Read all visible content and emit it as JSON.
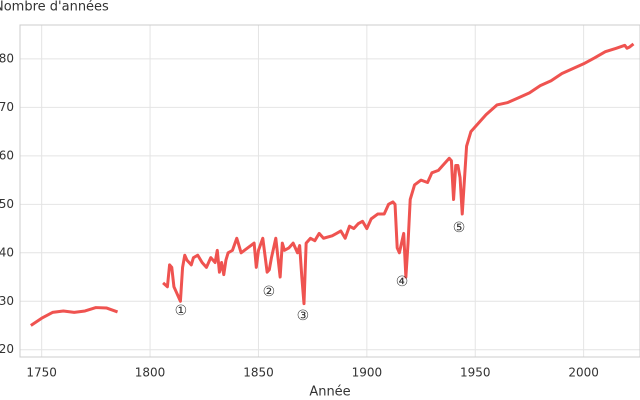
{
  "chart_data": {
    "type": "line",
    "y_label": "Nombre d'années",
    "x_label": "Année",
    "x": [
      1745,
      1750,
      1755,
      1760,
      1765,
      1770,
      1775,
      1780,
      1785,
      1795,
      1806,
      1808,
      1809,
      1810,
      1811,
      1812,
      1813,
      1814,
      1815,
      1816,
      1817,
      1818,
      1819,
      1820,
      1822,
      1824,
      1826,
      1828,
      1830,
      1831,
      1832,
      1833,
      1834,
      1835,
      1836,
      1838,
      1840,
      1842,
      1845,
      1848,
      1849,
      1850,
      1852,
      1854,
      1855,
      1856,
      1858,
      1860,
      1861,
      1862,
      1864,
      1866,
      1868,
      1869,
      1870,
      1871,
      1872,
      1874,
      1876,
      1878,
      1880,
      1884,
      1886,
      1888,
      1890,
      1892,
      1894,
      1896,
      1898,
      1900,
      1902,
      1905,
      1908,
      1910,
      1912,
      1913,
      1914,
      1915,
      1916,
      1917,
      1918,
      1919,
      1920,
      1922,
      1925,
      1928,
      1930,
      1933,
      1935,
      1938,
      1939,
      1940,
      1941,
      1942,
      1943,
      1944,
      1945,
      1946,
      1948,
      1950,
      1955,
      1960,
      1965,
      1970,
      1975,
      1980,
      1985,
      1990,
      1995,
      2000,
      2005,
      2010,
      2015,
      2019,
      2020,
      2021,
      2023
    ],
    "series": [
      {
        "color": "#ef5350",
        "values": [
          25,
          26.5,
          27.7,
          28,
          27.7,
          28,
          28.7,
          28.6,
          27.8,
          null,
          33.8,
          33,
          37.5,
          37,
          33,
          32,
          31,
          30,
          37,
          39.5,
          38.5,
          38,
          37.5,
          39,
          39.5,
          38,
          37,
          39,
          38,
          40.5,
          36,
          38,
          35.5,
          38.5,
          40,
          40.5,
          43,
          40,
          41,
          42,
          37,
          40.5,
          43,
          36,
          36.5,
          39,
          43,
          35,
          42,
          40.5,
          41,
          42,
          40,
          41.5,
          35,
          29.5,
          42,
          43,
          42.5,
          44,
          43,
          43.5,
          44,
          44.5,
          43,
          45.5,
          45,
          46,
          46.5,
          45,
          47,
          48,
          48,
          50,
          50.5,
          50,
          41,
          40,
          42,
          44,
          35,
          42,
          51,
          54,
          55,
          54.5,
          56.5,
          57,
          58,
          59.5,
          59,
          51,
          58,
          58,
          55.5,
          48,
          55,
          62,
          65,
          66,
          68.5,
          70.5,
          71,
          72,
          73,
          74.5,
          75.5,
          77,
          78,
          79,
          80.2,
          81.5,
          82.2,
          82.8,
          82.2,
          82.4,
          83.1
        ]
      }
    ],
    "xlim": [
      1740,
      2026
    ],
    "ylim": [
      18.5,
      87
    ],
    "xticks": [
      1750,
      1800,
      1850,
      1900,
      1950,
      2000
    ],
    "yticks": [
      20,
      30,
      40,
      50,
      60,
      70,
      80
    ],
    "grid": true,
    "annotations": [
      {
        "label": "①",
        "x": 1814.2,
        "y": 28
      },
      {
        "label": "②",
        "x": 1854.8,
        "y": 31.9
      },
      {
        "label": "③",
        "x": 1870.5,
        "y": 27
      },
      {
        "label": "④",
        "x": 1916.2,
        "y": 34
      },
      {
        "label": "⑤",
        "x": 1942.5,
        "y": 45.1
      }
    ]
  }
}
